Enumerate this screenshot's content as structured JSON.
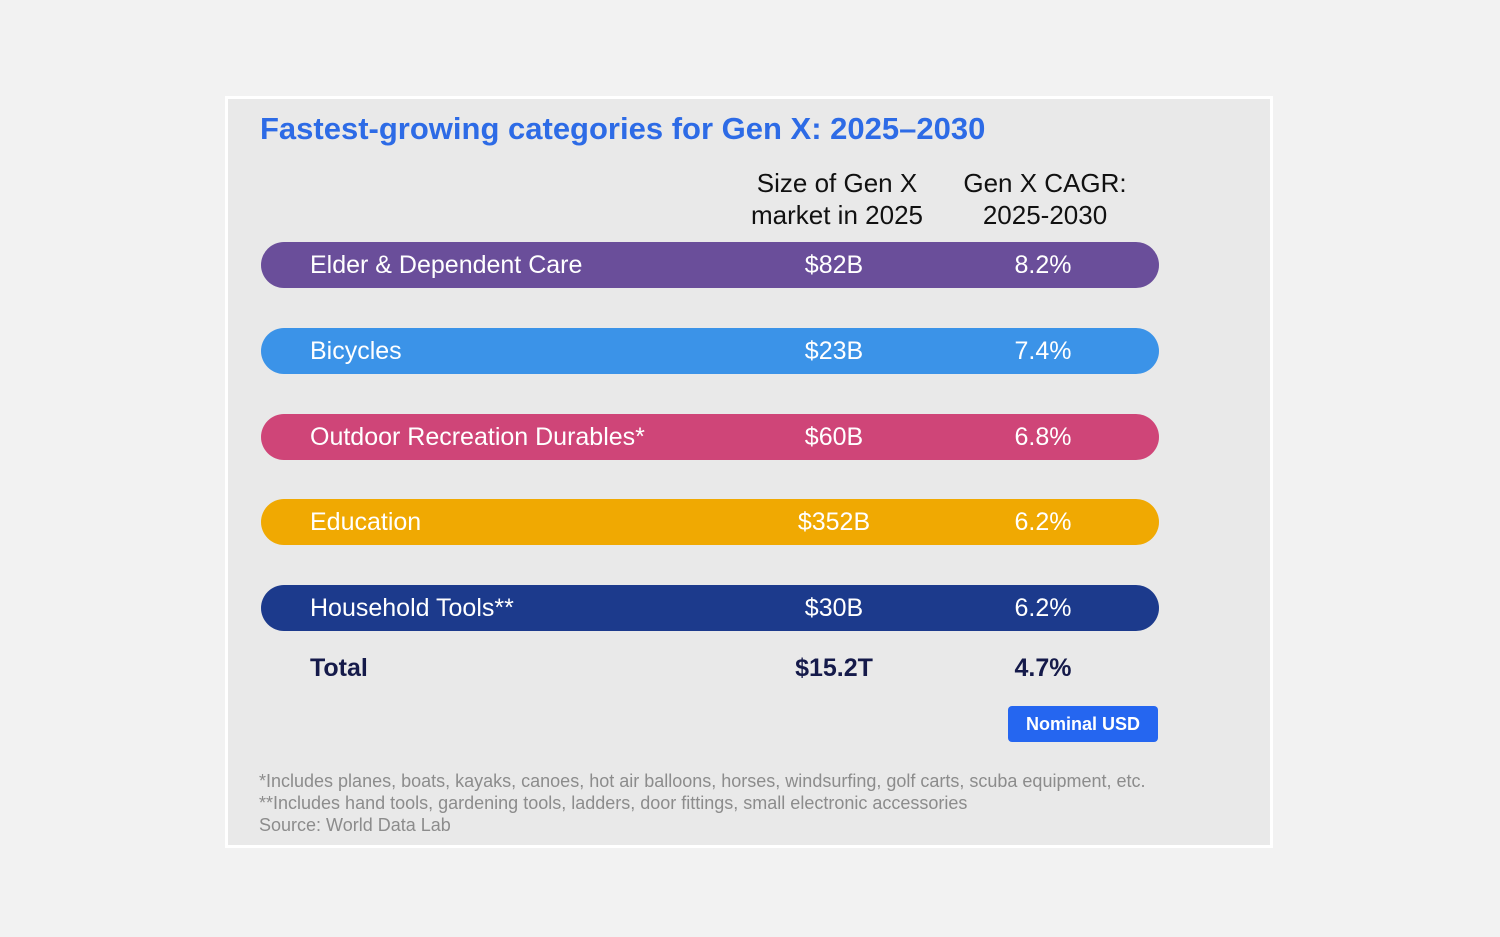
{
  "chart_data": {
    "type": "table",
    "title": "Fastest-growing categories for Gen X: 2025–2030",
    "columns": [
      {
        "line1": "Size of Gen X",
        "line2": "market in 2025"
      },
      {
        "line1": "Gen X CAGR:",
        "line2": "2025-2030"
      }
    ],
    "rows": [
      {
        "label": "Elder & Dependent Care",
        "size": "$82B",
        "cagr": "8.2%",
        "color": "#6a4e9a"
      },
      {
        "label": "Bicycles",
        "size": "$23B",
        "cagr": "7.4%",
        "color": "#3b93e8"
      },
      {
        "label": "Outdoor Recreation Durables*",
        "size": "$60B",
        "cagr": "6.8%",
        "color": "#cf4578"
      },
      {
        "label": "Education",
        "size": "$352B",
        "cagr": "6.2%",
        "color": "#f0a902"
      },
      {
        "label": "Household Tools**",
        "size": "$30B",
        "cagr": "6.2%",
        "color": "#1c3a8c"
      }
    ],
    "total": {
      "label": "Total",
      "size": "$15.2T",
      "cagr": "4.7%"
    },
    "unit_badge": "Nominal USD",
    "footnotes": [
      "*Includes planes, boats, kayaks, canoes, hot air balloons, horses, windsurfing, golf carts, scuba equipment, etc.",
      "**Includes hand tools, gardening tools, ladders, door fittings, small electronic accessories",
      "Source: World Data Lab"
    ]
  }
}
